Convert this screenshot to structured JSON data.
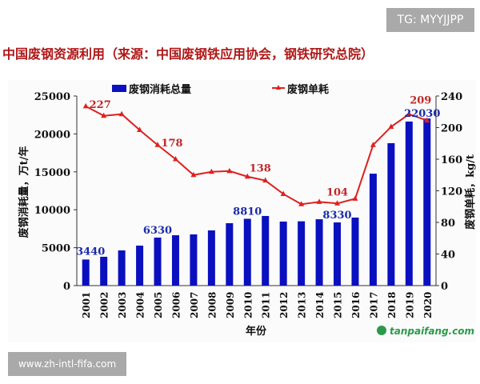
{
  "watermark_top": "TG: MYYJJPP",
  "watermark_bottom": "www.zh-intl-fifa.com",
  "title": "中国废钢资源利用（来源：中国废钢铁应用协会，钢铁研究总院）",
  "source_logo": "tanpaifang.com",
  "chart_data": {
    "type": "bar+line",
    "categories": [
      "2001",
      "2002",
      "2003",
      "2004",
      "2005",
      "2006",
      "2007",
      "2008",
      "2009",
      "2010",
      "2011",
      "2012",
      "2013",
      "2014",
      "2015",
      "2016",
      "2017",
      "2018",
      "2019",
      "2020"
    ],
    "series": [
      {
        "name": "废钢消耗总量",
        "type": "bar",
        "axis": "left",
        "color": "#0a10c0",
        "values": [
          3440,
          3800,
          4640,
          5270,
          6330,
          6640,
          6750,
          7280,
          8230,
          8810,
          9180,
          8440,
          8480,
          8750,
          8330,
          8970,
          14760,
          18780,
          21630,
          22030
        ]
      },
      {
        "name": "废钢单耗",
        "type": "line",
        "axis": "right",
        "color": "#e02020",
        "values": [
          227,
          215,
          217,
          197,
          178,
          160,
          140,
          144,
          145,
          138,
          133,
          116,
          103,
          106,
          104,
          110,
          178,
          201,
          217,
          209
        ]
      }
    ],
    "bar_labels": [
      {
        "index": 0,
        "text": "3440"
      },
      {
        "index": 4,
        "text": "6330"
      },
      {
        "index": 9,
        "text": "8810"
      },
      {
        "index": 14,
        "text": "8330"
      },
      {
        "index": 19,
        "text": "22030"
      }
    ],
    "line_labels": [
      {
        "index": 0,
        "text": "227"
      },
      {
        "index": 4,
        "text": "178"
      },
      {
        "index": 9,
        "text": "138"
      },
      {
        "index": 14,
        "text": "104"
      },
      {
        "index": 19,
        "text": "209"
      }
    ],
    "xlabel": "年份",
    "ylabel": "废钢消耗量，万t/年",
    "y2label": "废钢单耗，kg/t",
    "ylim": [
      0,
      25000
    ],
    "y2lim": [
      0,
      240
    ],
    "yticks": [
      "0",
      "5000",
      "10000",
      "15000",
      "20000",
      "25000"
    ],
    "y2ticks": [
      "0",
      "40",
      "80",
      "120",
      "160",
      "200",
      "240"
    ],
    "legend": "top",
    "grid": false
  }
}
